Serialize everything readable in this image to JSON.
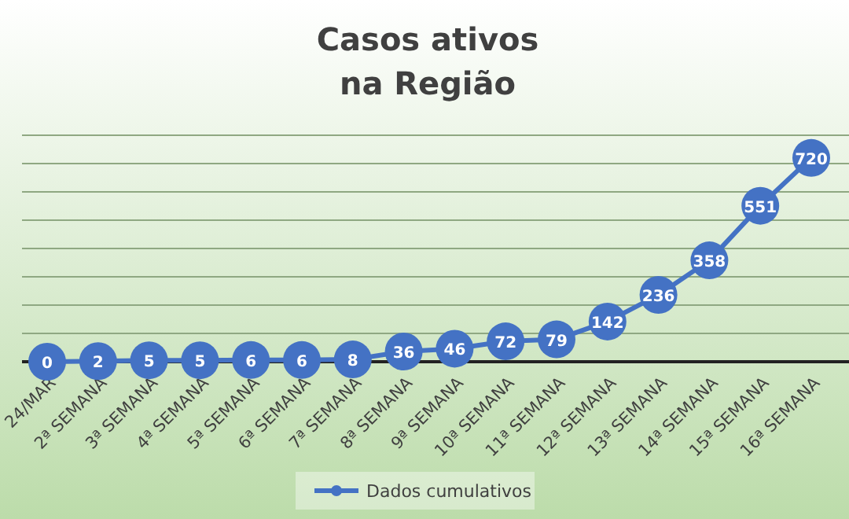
{
  "chart_data": {
    "type": "line",
    "title": "Casos ativos\nna Região",
    "categories": [
      "24/MAR",
      "2ª SEMANA",
      "3ª SEMANA",
      "4ª SEMANA",
      "5ª SEMANA",
      "6ª SEMANA",
      "7ª SEMANA",
      "8ª SEMANA",
      "9ª SEMANA",
      "10ª SEMANA",
      "11ª SEMANA",
      "12ª SEMANA",
      "13ª SEMANA",
      "14ª SEMANA",
      "15ª SEMANA",
      "16ª SEMANA"
    ],
    "series": [
      {
        "name": "Dados cumulativos",
        "color": "#4472c4",
        "values": [
          0,
          2,
          5,
          5,
          6,
          6,
          8,
          36,
          46,
          72,
          79,
          142,
          236,
          358,
          551,
          720
        ]
      }
    ],
    "ylim": [
      0,
      800
    ],
    "yticks": [
      {
        "value": 0,
        "label": null
      },
      {
        "value": 100,
        "label": null
      },
      {
        "value": 200,
        "label": null
      },
      {
        "value": 300,
        "label": null
      },
      {
        "value": 400,
        "label": null
      },
      {
        "value": 500,
        "label": null
      },
      {
        "value": 600,
        "label": null
      },
      {
        "value": 700,
        "label": null
      },
      {
        "value": 800,
        "label": null
      }
    ],
    "grid": "y",
    "legend": "bottom",
    "marker": "circle",
    "line_style": "solid",
    "data_labels": true
  }
}
